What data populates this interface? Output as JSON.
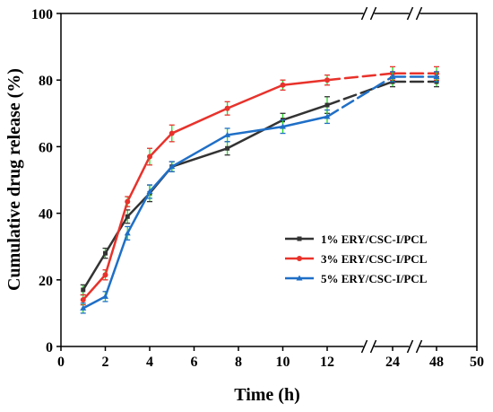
{
  "chart_data": {
    "type": "line",
    "xlabel": "Time (h)",
    "ylabel": "Cumulative drug release (%)",
    "ylim": [
      0,
      100
    ],
    "x": [
      1,
      2,
      3,
      4,
      5,
      7.5,
      10,
      12,
      24,
      48
    ],
    "x_tick_values": [
      0,
      2,
      4,
      6,
      8,
      10,
      12,
      24,
      48,
      50
    ],
    "x_tick_labels": [
      "0",
      "2",
      "4",
      "6",
      "8",
      "10",
      "12",
      "24",
      "48",
      "50"
    ],
    "y_ticks": [
      0,
      20,
      40,
      60,
      80,
      100
    ],
    "axis_breaks": "double slash marks on the x-axis between 12 and 24 and between 24 and 48, also on the top border",
    "legend_position": "center-right",
    "series": [
      {
        "name": "1% ERY/CSC-I/PCL",
        "color": "#333333",
        "marker": "square",
        "values": [
          17,
          28,
          39,
          46,
          54,
          59.5,
          68,
          72.5,
          79.5,
          79.5
        ],
        "errors": [
          1.5,
          1.5,
          2,
          2.5,
          1.5,
          2,
          2,
          2.5,
          1.5,
          1.5
        ]
      },
      {
        "name": "3% ERY/CSC-I/PCL",
        "color": "#e8322b",
        "marker": "circle",
        "values": [
          14,
          21.5,
          43.5,
          57,
          64,
          71.5,
          78.5,
          80,
          82,
          82
        ],
        "errors": [
          1.5,
          1.5,
          1.5,
          2.5,
          2.5,
          2,
          1.5,
          1.5,
          2,
          2
        ]
      },
      {
        "name": "5% ERY/CSC-I/PCL",
        "color": "#1f6fc7",
        "marker": "triangle",
        "values": [
          11.5,
          15,
          34,
          46.5,
          54,
          63.5,
          66,
          69,
          81,
          81
        ],
        "errors": [
          1.5,
          1.5,
          2,
          2,
          1.5,
          2,
          2,
          2,
          1.5,
          1.5
        ]
      }
    ],
    "error_bar_color": "#22dd22"
  }
}
